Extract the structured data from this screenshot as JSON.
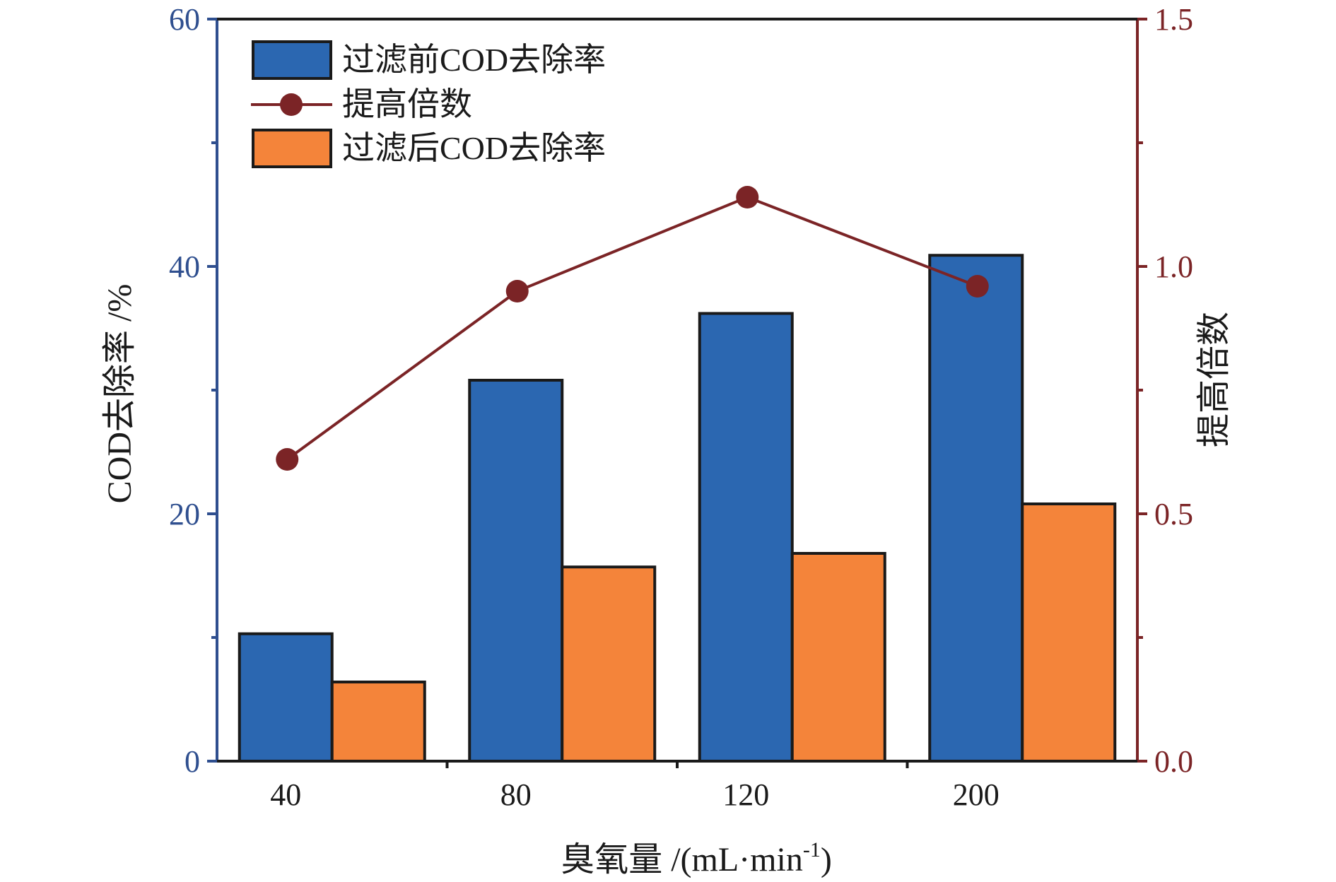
{
  "chart_data": {
    "type": "bar",
    "categories": [
      "40",
      "80",
      "120",
      "200"
    ],
    "series": [
      {
        "name": "过滤前COD去除率",
        "type": "bar",
        "axis": "left",
        "color": "#2b67b1",
        "values": [
          10.3,
          30.8,
          36.2,
          40.9
        ]
      },
      {
        "name": "过滤后COD去除率",
        "type": "bar",
        "axis": "left",
        "color": "#f4843a",
        "values": [
          6.4,
          15.7,
          16.8,
          20.8
        ]
      },
      {
        "name": "提高倍数",
        "type": "line",
        "axis": "right",
        "color": "#7b2426",
        "values": [
          0.61,
          0.95,
          1.14,
          0.96
        ]
      }
    ],
    "xlabel": "臭氧量 /(mL·min",
    "xlabel_sup": "-1",
    "xlabel_close": ")",
    "ylabel_left": "COD去除率  /%",
    "ylabel_right": "提高倍数",
    "ylim_left": [
      0,
      60
    ],
    "ylim_right": [
      0,
      1.5
    ],
    "yticks_left": [
      "0",
      "20",
      "40",
      "60"
    ],
    "yticks_right": [
      "0.0",
      "0.5",
      "1.0",
      "1.5"
    ],
    "left_axis_color": "#2f4f8f",
    "right_axis_color": "#7b2426",
    "grid": false,
    "legend_position": "top-left"
  }
}
